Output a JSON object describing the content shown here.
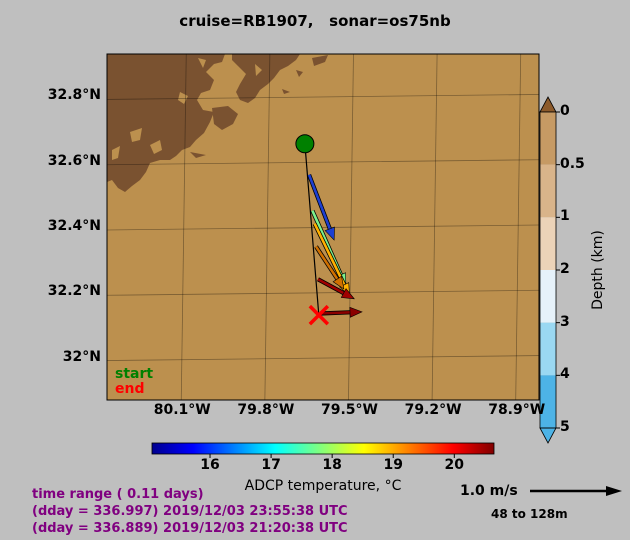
{
  "title": "cruise=RB1907,   sonar=os75nb",
  "chart_data": {
    "type": "vector-map",
    "lat_ticks": [
      "32.8°N",
      "32.6°N",
      "32.4°N",
      "32.2°N",
      "32°N"
    ],
    "lat_values": [
      32.8,
      32.6,
      32.4,
      32.2,
      32.0
    ],
    "lon_ticks": [
      "80.1°W",
      "79.8°W",
      "79.5°W",
      "79.2°W",
      "78.9°W"
    ],
    "lon_values": [
      -80.1,
      -79.8,
      -79.5,
      -79.2,
      -78.9
    ],
    "xlim": [
      -80.37,
      -78.82
    ],
    "ylim": [
      31.87,
      32.93
    ],
    "track": {
      "start": {
        "lon": -79.66,
        "lat": 32.655,
        "color": "#008000"
      },
      "end": {
        "lon": -79.61,
        "lat": 32.13,
        "color": "#ff0000"
      }
    },
    "vectors": [
      {
        "lon": -79.645,
        "lat": 32.56,
        "dlon": 0.09,
        "dlat": -0.2,
        "color": "#1e3fd0"
      },
      {
        "lon": -79.633,
        "lat": 32.45,
        "dlon": 0.12,
        "dlat": -0.23,
        "color": "#7cf08c"
      },
      {
        "lon": -79.625,
        "lat": 32.41,
        "dlon": 0.125,
        "dlat": -0.22,
        "color": "#ffb000"
      },
      {
        "lon": -79.62,
        "lat": 32.34,
        "dlon": 0.1,
        "dlat": -0.13,
        "color": "#d07000"
      },
      {
        "lon": -79.613,
        "lat": 32.24,
        "dlon": 0.13,
        "dlat": -0.06,
        "color": "#a00000"
      },
      {
        "lon": -79.605,
        "lat": 32.135,
        "dlon": 0.15,
        "dlat": 0.005,
        "color": "#8b0000"
      }
    ],
    "depth_colorbar": {
      "title": "Depth (km)",
      "ticks": [
        "0",
        "0.5",
        "1",
        "2",
        "3",
        "4",
        "5"
      ],
      "colors": [
        "#8c5a2b",
        "#c69a64",
        "#d9b48a",
        "#ecd3b8",
        "#e6f2fa",
        "#9ad8f2",
        "#4db3e6"
      ]
    },
    "temp_colorbar": {
      "label": "ADCP temperature, °C",
      "ticks": [
        "16",
        "17",
        "18",
        "19",
        "20"
      ],
      "tick_values": [
        16,
        17,
        18,
        19,
        20
      ],
      "range": [
        15.05,
        20.65
      ]
    },
    "legend": {
      "start": "start",
      "end": "end"
    }
  },
  "info": {
    "line1": "time range ( 0.11 days)",
    "line2": "(dday = 336.997) 2019/12/03 23:55:38 UTC",
    "line3": "(dday = 336.889) 2019/12/03 21:20:38 UTC"
  },
  "scale": {
    "label": "1.0 m/s",
    "depth_range": "48 to 128m"
  },
  "colors": {
    "land": "#7a5230",
    "ocean": "#bc904e",
    "background": "#bfbfbf",
    "info_text": "#800080"
  }
}
